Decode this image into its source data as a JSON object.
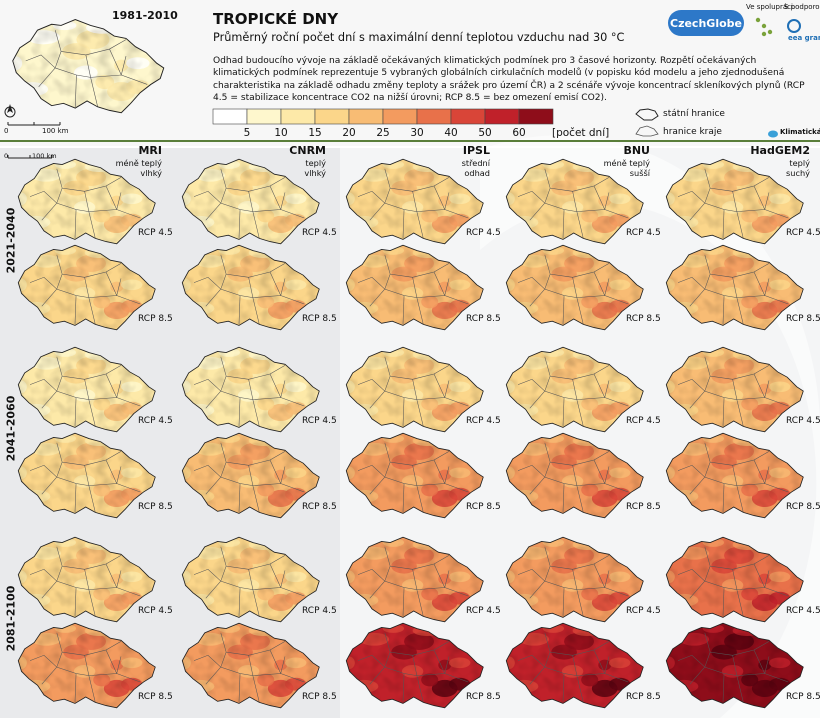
{
  "header": {
    "title": "TROPICKÉ DNY",
    "subtitle": "Průměrný roční počet dní s maximální denní teplotou vzduchu nad 30 °C",
    "description": "Odhad budoucího vývoje na základě očekávaných klimatických podmínek pro 3 časové horizonty. Rozpětí očekávaných klimatických podmínek reprezentuje 5 vybraných globálních cirkulačních modelů (v popisku kód modelu a jeho zjednodušená charakteristika na základě odhadu změny teploty a srážek pro území ČR) a 2 scénáře vývoje koncentrací skleníkových plynů (RCP 4.5 = stabilizace koncentrace CO2 na nižší úrovni; RCP 8.5 = bez omezení emisí CO2)."
  },
  "reference_period": "1981-2010",
  "scale_bar": "100 km",
  "legend": {
    "colors": [
      "#ffffff",
      "#fef7cd",
      "#fde9a8",
      "#fbd68a",
      "#f8bc74",
      "#f39b5f",
      "#e8714a",
      "#d94538",
      "#c0212a",
      "#8e0d1a",
      "#5a0410"
    ],
    "labels": [
      "5",
      "10",
      "15",
      "20",
      "25",
      "30",
      "40",
      "50",
      "60"
    ],
    "unit": "[počet dní]"
  },
  "boundaries": {
    "state": "státní hranice",
    "region": "hranice kraje"
  },
  "partners": {
    "cooperation": "Ve spolupráci:",
    "support": "S podporou:",
    "czechglobe": "CzechGlobe",
    "eea": "eea grants",
    "klimaticka": "Klimatická Změna.cz"
  },
  "models": [
    {
      "name": "MRI",
      "desc": [
        "méně teplý",
        "vlhký"
      ]
    },
    {
      "name": "CNRM",
      "desc": [
        "teplý",
        "vlhký"
      ]
    },
    {
      "name": "IPSL",
      "desc": [
        "střední",
        "odhad"
      ]
    },
    {
      "name": "BNU",
      "desc": [
        "méně teplý",
        "sušší"
      ]
    },
    {
      "name": "HadGEM2",
      "desc": [
        "teplý",
        "suchý"
      ]
    }
  ],
  "periods": [
    "2021-2040",
    "2041-2060",
    "2081-2100"
  ],
  "scenarios": [
    "RCP 4.5",
    "RCP 8.5"
  ],
  "map_data": {
    "reference_level": 1,
    "grid_levels": [
      [
        [
          2,
          3
        ],
        [
          2,
          3
        ],
        [
          3,
          4
        ],
        [
          3,
          4
        ],
        [
          3,
          4
        ]
      ],
      [
        [
          2,
          3
        ],
        [
          2,
          4
        ],
        [
          3,
          5
        ],
        [
          3,
          5
        ],
        [
          4,
          5
        ]
      ],
      [
        [
          3,
          5
        ],
        [
          3,
          5
        ],
        [
          5,
          8
        ],
        [
          5,
          8
        ],
        [
          6,
          9
        ]
      ]
    ]
  }
}
